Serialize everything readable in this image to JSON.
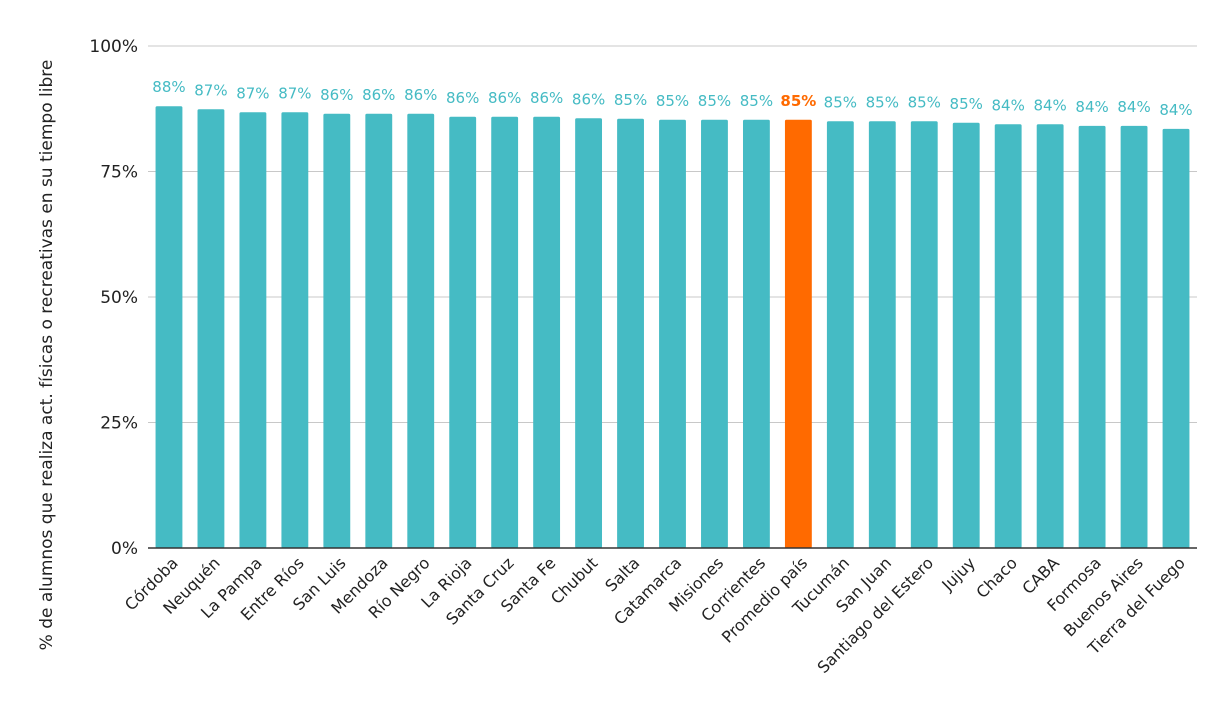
{
  "chart_data": {
    "type": "bar",
    "ylabel": "% de alumnos que realiza act. físicas o recreativas en su tiempo libre",
    "ylim": [
      0,
      100
    ],
    "yticks": [
      "0%",
      "25%",
      "50%",
      "75%",
      "100%"
    ],
    "ytick_values": [
      0,
      25,
      50,
      75,
      100
    ],
    "grid": true,
    "categories": [
      "Córdoba",
      "Neuquén",
      "La Pampa",
      "Entre Ríos",
      "San Luis",
      "Mendoza",
      "Río Negro",
      "La Rioja",
      "Santa Cruz",
      "Santa Fe",
      "Chubut",
      "Salta",
      "Catamarca",
      "Misiones",
      "Corrientes",
      "Promedio país",
      "Tucumán",
      "San Juan",
      "Santiago del Estero",
      "Jujuy",
      "Chaco",
      "CABA",
      "Formosa",
      "Buenos Aires",
      "Tierra del Fuego"
    ],
    "values": [
      88,
      87.4,
      86.8,
      86.8,
      86.5,
      86.5,
      86.5,
      85.9,
      85.9,
      85.9,
      85.6,
      85.5,
      85.3,
      85.3,
      85.3,
      85.3,
      85.0,
      85.0,
      85.0,
      84.7,
      84.4,
      84.4,
      84.1,
      84.1,
      83.5
    ],
    "data_labels": [
      "88%",
      "87%",
      "87%",
      "87%",
      "86%",
      "86%",
      "86%",
      "86%",
      "86%",
      "86%",
      "86%",
      "85%",
      "85%",
      "85%",
      "85%",
      "85%",
      "85%",
      "85%",
      "85%",
      "85%",
      "84%",
      "84%",
      "84%",
      "84%",
      "84%"
    ],
    "highlight_category": "Promedio país",
    "colors": {
      "bar": "#45bbc4",
      "highlight": "#ff6a00",
      "label": "#45bbc4",
      "highlight_label": "#ff6a00",
      "grid": "#c8c8c8",
      "axis": "#333333"
    }
  }
}
